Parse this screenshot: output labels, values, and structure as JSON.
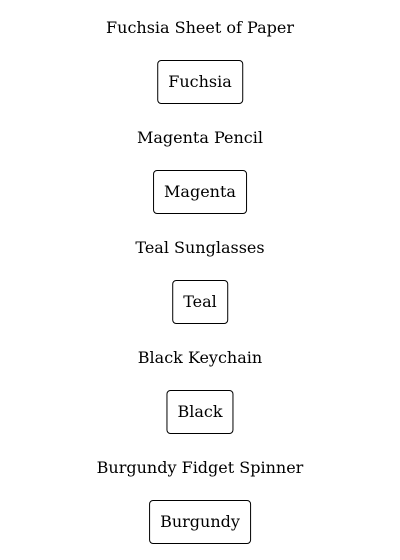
{
  "items": [
    {
      "title": "Fuchsia Sheet of Paper",
      "button_label": "Fuchsia"
    },
    {
      "title": "Magenta Pencil",
      "button_label": "Magenta"
    },
    {
      "title": "Teal Sunglasses",
      "button_label": "Teal"
    },
    {
      "title": "Black Keychain",
      "button_label": "Black"
    },
    {
      "title": "Burgundy Fidget Spinner",
      "button_label": "Burgundy"
    }
  ]
}
